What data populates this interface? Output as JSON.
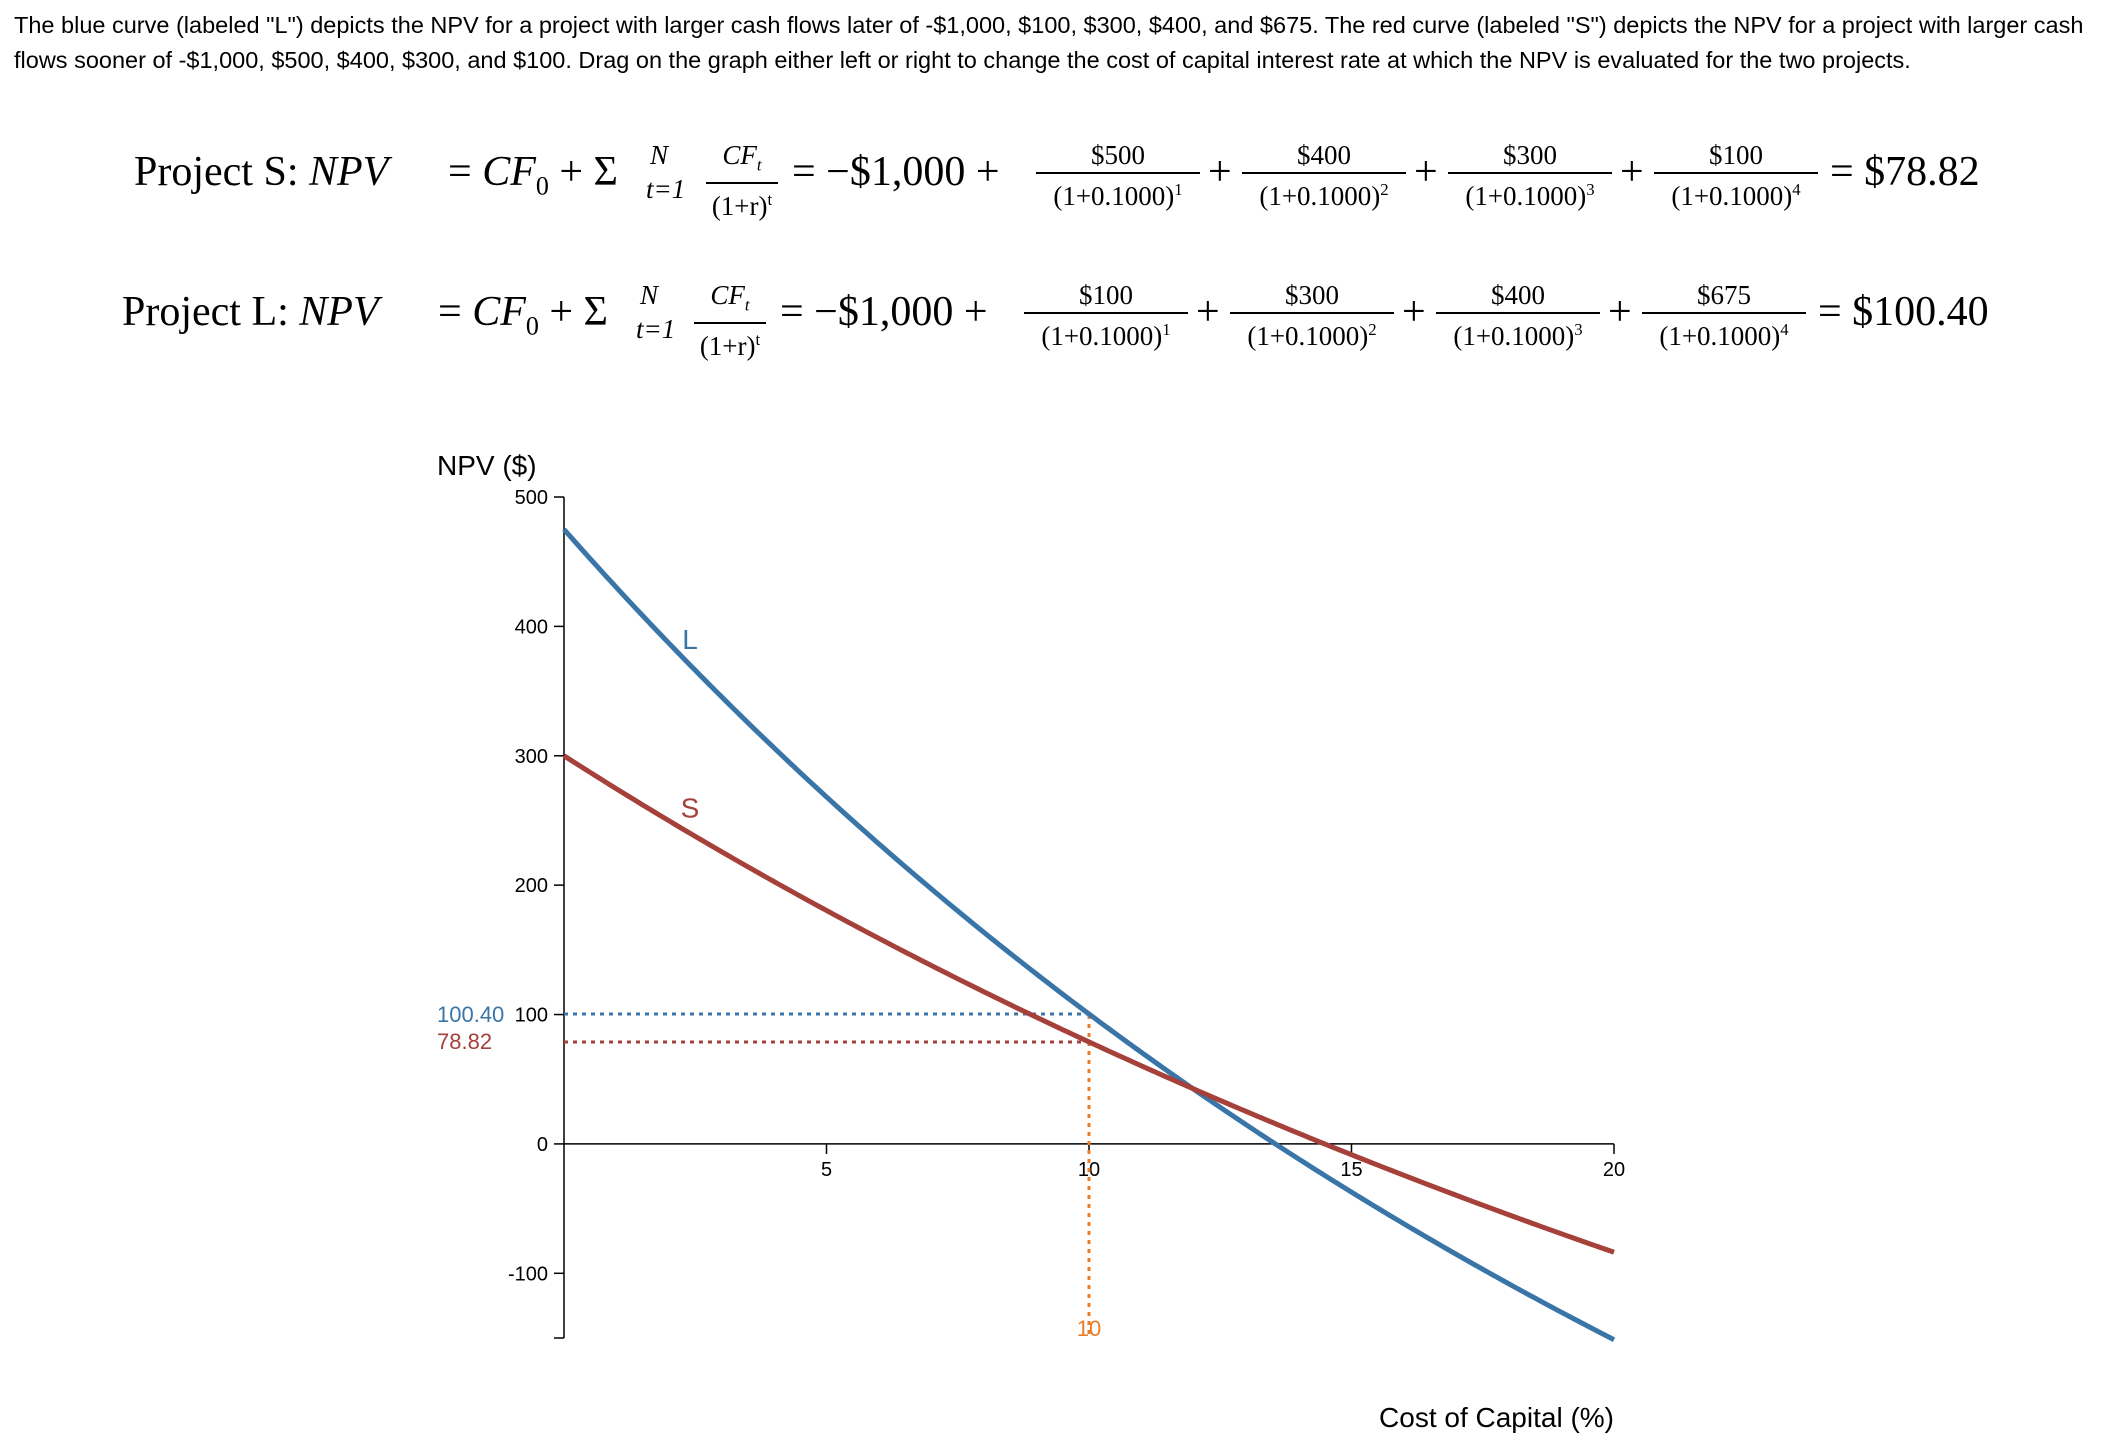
{
  "intro_text": "The blue curve (labeled \"L\") depicts the NPV for a project with larger cash flows later of -$1,000, $100, $300, $400, and $675. The red curve (labeled \"S\") depicts the NPV for a project with larger cash flows sooner of -$1,000, $500, $400, $300, and $100. Drag on the graph either left or right to change the cost of capital interest rate at which the NPV is evaluated for the two projects.",
  "equation_s": {
    "label": "Project S: ",
    "npv_symbol": "NPV",
    "cf0_symbol": "CF",
    "sum_upper": "N",
    "sum_lower": "t=1",
    "gen_num": "CF",
    "gen_den": "(1+r)",
    "initial": "= −$1,000 +",
    "terms": [
      {
        "num": "$500",
        "den": "(1+0.1000)",
        "exp": "1"
      },
      {
        "num": "$400",
        "den": "(1+0.1000)",
        "exp": "2"
      },
      {
        "num": "$300",
        "den": "(1+0.1000)",
        "exp": "3"
      },
      {
        "num": "$100",
        "den": "(1+0.1000)",
        "exp": "4"
      }
    ],
    "result": "= $78.82"
  },
  "equation_l": {
    "label": "Project L: ",
    "npv_symbol": "NPV",
    "cf0_symbol": "CF",
    "sum_upper": "N",
    "sum_lower": "t=1",
    "gen_num": "CF",
    "gen_den": "(1+r)",
    "initial": "= −$1,000 +",
    "terms": [
      {
        "num": "$100",
        "den": "(1+0.1000)",
        "exp": "1"
      },
      {
        "num": "$300",
        "den": "(1+0.1000)",
        "exp": "2"
      },
      {
        "num": "$400",
        "den": "(1+0.1000)",
        "exp": "3"
      },
      {
        "num": "$675",
        "den": "(1+0.1000)",
        "exp": "4"
      }
    ],
    "result": "= $100.40"
  },
  "chart_data": {
    "type": "line",
    "xlabel": "Cost of Capital (%)",
    "ylabel": "NPV ($)",
    "xlim": [
      0,
      20
    ],
    "ylim": [
      -150,
      500
    ],
    "x_ticks": [
      5,
      10,
      15,
      20
    ],
    "y_ticks": [
      500,
      400,
      300,
      200,
      100,
      0,
      -100
    ],
    "grid": false,
    "series": [
      {
        "name": "L",
        "color": "#3a75a8",
        "cash_flows": [
          -1000,
          100,
          300,
          400,
          675
        ]
      },
      {
        "name": "S",
        "color": "#a6403a",
        "cash_flows": [
          -1000,
          500,
          400,
          300,
          100
        ]
      }
    ],
    "series_label_x": 2.4,
    "selected_rate": 10,
    "selected_rate_label": "10",
    "selected_rate_color": "#e87d2a",
    "selected_values": [
      {
        "series": "L",
        "value": 100.4,
        "label": "100.40",
        "color": "#3a75a8"
      },
      {
        "series": "S",
        "value": 78.82,
        "label": "78.82",
        "color": "#a6403a"
      }
    ]
  }
}
